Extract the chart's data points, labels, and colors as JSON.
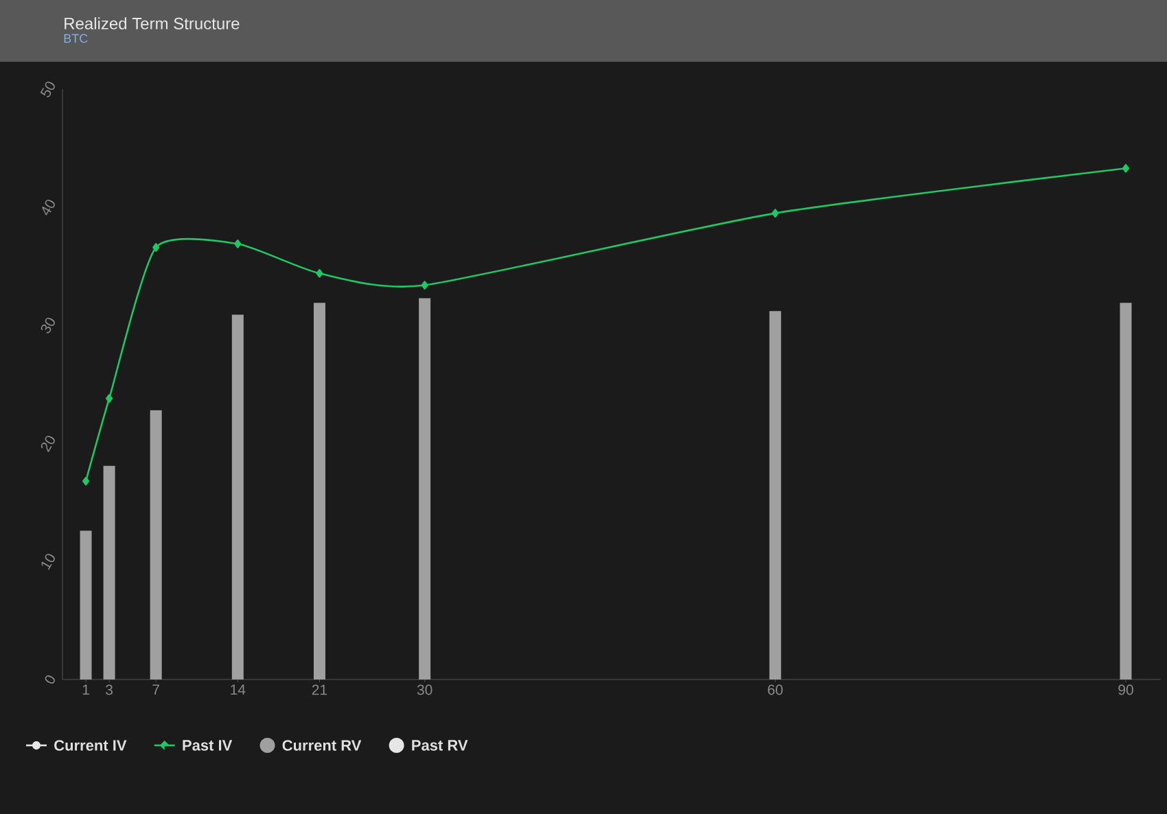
{
  "chart_data": {
    "type": "bar",
    "title": "Realized Term Structure",
    "subtitle": "BTC",
    "x": [
      1,
      3,
      7,
      14,
      21,
      30,
      60,
      90
    ],
    "xlim": [
      -1,
      93
    ],
    "xticks": [
      1,
      3,
      7,
      14,
      21,
      30,
      60,
      90
    ],
    "ylim": [
      0,
      50
    ],
    "yticks": [
      0,
      10,
      20,
      30,
      40,
      50
    ],
    "legend": "bottom left",
    "grid": false,
    "series": [
      {
        "name": "Current IV",
        "type": "line",
        "marker": "circle",
        "color": "#e6e6e6",
        "values": [
          null,
          null,
          null,
          null,
          null,
          null,
          null,
          null
        ]
      },
      {
        "name": "Past IV",
        "type": "line",
        "marker": "diamond",
        "color": "#1fc765",
        "values": [
          16.8,
          23.8,
          36.6,
          36.9,
          34.4,
          33.4,
          39.5,
          43.3
        ]
      },
      {
        "name": "Current RV",
        "color": "#a0a0a0",
        "values": [
          12.6,
          18.1,
          22.8,
          30.9,
          31.9,
          32.3,
          31.2,
          31.9
        ]
      },
      {
        "name": "Past RV",
        "color": "#e6e6e6",
        "values": [
          null,
          null,
          null,
          null,
          null,
          null,
          null,
          null
        ]
      }
    ]
  }
}
